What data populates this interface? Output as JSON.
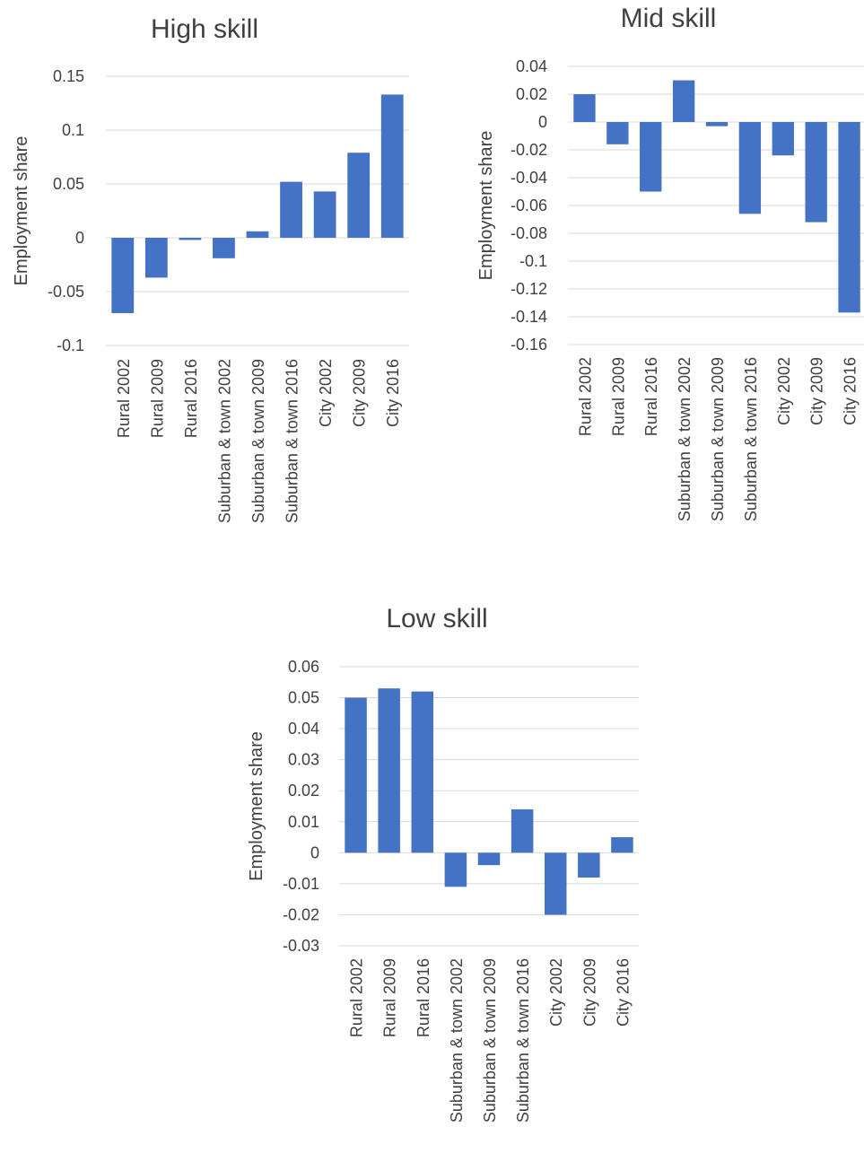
{
  "chart_data": [
    {
      "type": "bar",
      "title": "High skill",
      "ylabel": "Employment share",
      "xlabel": "",
      "categories": [
        "Rural 2002",
        "Rural 2009",
        "Rural 2016",
        "Suburban & town 2002",
        "Suburban & town 2009",
        "Suburban & town 2016",
        "City 2002",
        "City 2009",
        "City 2016"
      ],
      "values": [
        -0.07,
        -0.037,
        -0.002,
        -0.019,
        0.006,
        0.052,
        0.043,
        0.079,
        0.133
      ],
      "ylim": [
        -0.1,
        0.15
      ],
      "yticks": [
        "0.15",
        "0.1",
        "0.05",
        "0",
        "-0.05",
        "-0.1"
      ],
      "grid": true,
      "color": "#4472c4"
    },
    {
      "type": "bar",
      "title": "Mid skill",
      "ylabel": "Employment share",
      "xlabel": "",
      "categories": [
        "Rural 2002",
        "Rural 2009",
        "Rural 2016",
        "Suburban & town 2002",
        "Suburban & town 2009",
        "Suburban & town 2016",
        "City 2002",
        "City 2009",
        "City 2016"
      ],
      "values": [
        0.02,
        -0.016,
        -0.05,
        0.03,
        -0.003,
        -0.066,
        -0.024,
        -0.072,
        -0.137
      ],
      "ylim": [
        -0.16,
        0.04
      ],
      "yticks": [
        "0.04",
        "0.02",
        "0",
        "-0.02",
        "-0.04",
        "-0.06",
        "-0.08",
        "-0.1",
        "-0.12",
        "-0.14",
        "-0.16"
      ],
      "grid": true,
      "color": "#4472c4"
    },
    {
      "type": "bar",
      "title": "Low skill",
      "ylabel": "Employment share",
      "xlabel": "",
      "categories": [
        "Rural 2002",
        "Rural 2009",
        "Rural 2016",
        "Suburban & town 2002",
        "Suburban & town 2009",
        "Suburban & town 2016",
        "City 2002",
        "City 2009",
        "City 2016"
      ],
      "values": [
        0.05,
        0.053,
        0.052,
        -0.011,
        -0.004,
        0.014,
        -0.02,
        -0.008,
        0.005
      ],
      "ylim": [
        -0.03,
        0.06
      ],
      "yticks": [
        "0.06",
        "0.05",
        "0.04",
        "0.03",
        "0.02",
        "0.01",
        "0",
        "-0.01",
        "-0.02",
        "-0.03"
      ],
      "grid": true,
      "color": "#4472c4"
    }
  ]
}
